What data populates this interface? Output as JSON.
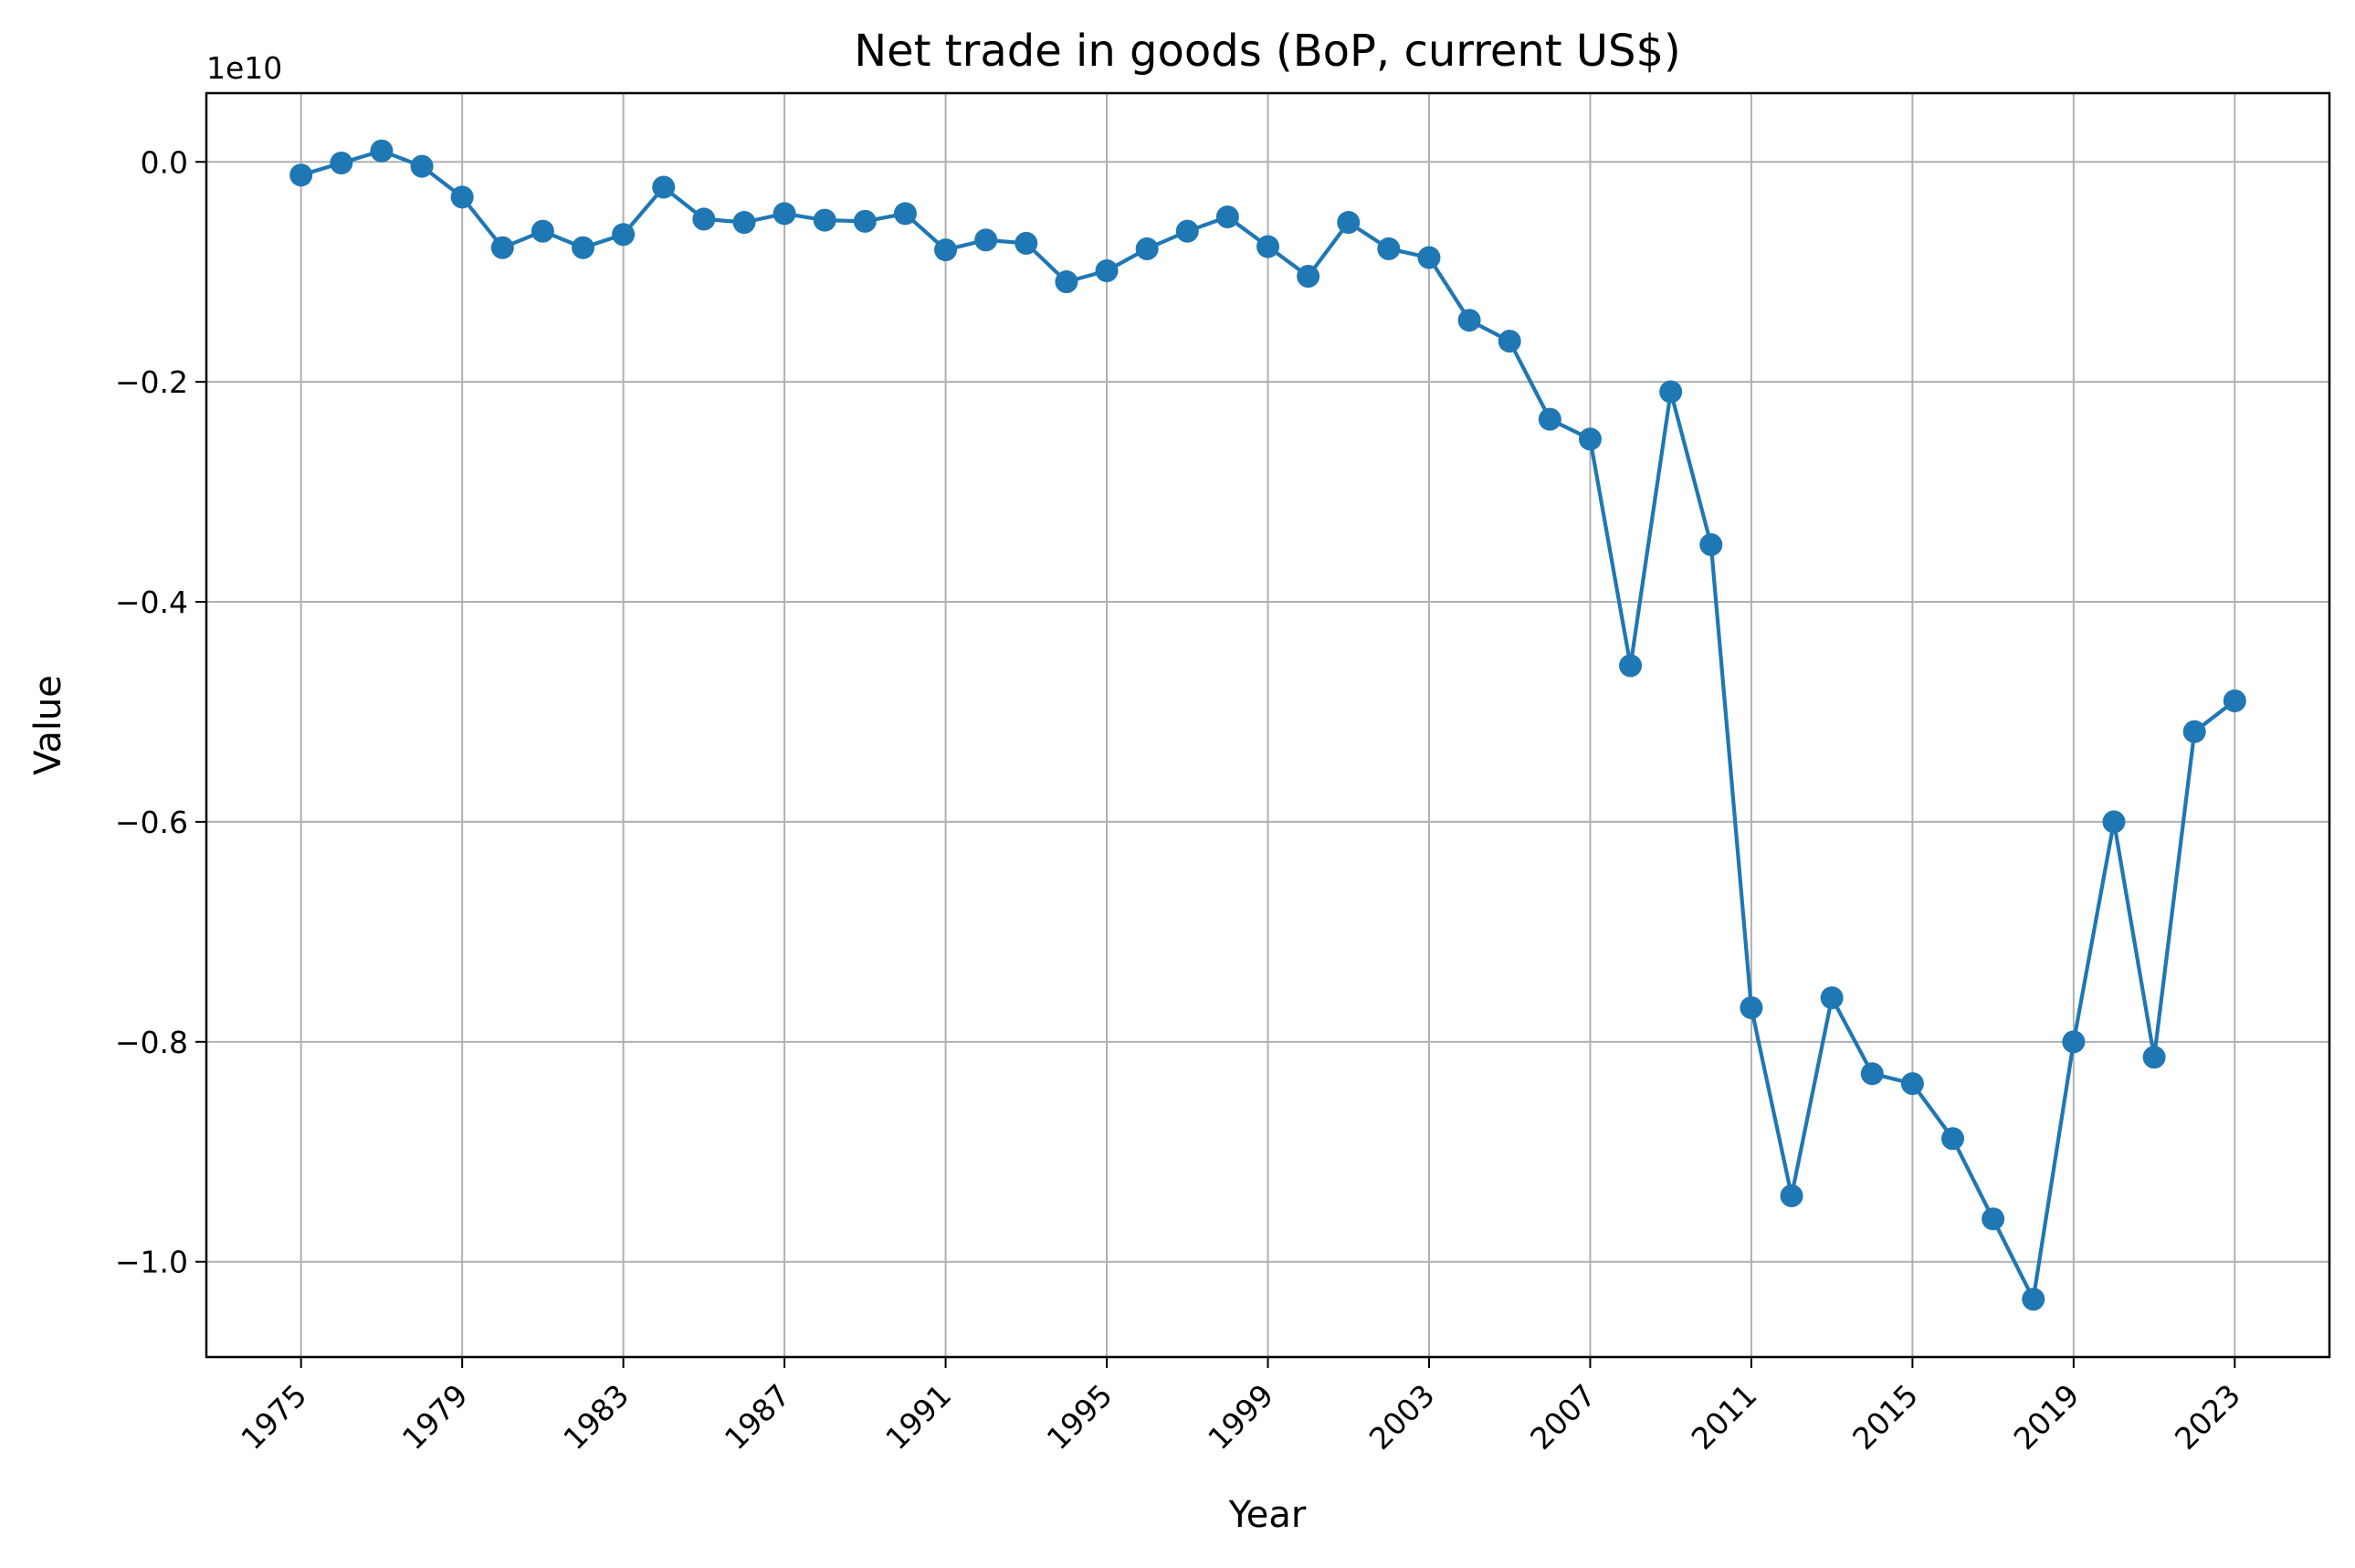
{
  "chart_data": {
    "type": "line",
    "title": "Net trade in goods (BoP, current US$)",
    "xlabel": "Year",
    "ylabel": "Value",
    "y_offset_label": "1e10",
    "x_ticks": [
      "1975",
      "1979",
      "1983",
      "1987",
      "1991",
      "1995",
      "1999",
      "2003",
      "2007",
      "2011",
      "2015",
      "2019",
      "2023"
    ],
    "y_ticks": [
      "0.0",
      "−0.2",
      "−0.4",
      "−0.6",
      "−0.8",
      "−1.0"
    ],
    "y_tick_values": [
      0.0,
      -0.2,
      -0.4,
      -0.6,
      -0.8,
      -1.0
    ],
    "xlim": [
      1972.65,
      2025.35
    ],
    "ylim": [
      -1.0866,
      0.0625
    ],
    "y_scale_note": "values in units of 1e10 US$",
    "grid": true,
    "color": "#1f77b4",
    "series": [
      {
        "x": [
          1975,
          1976,
          1977,
          1978,
          1979,
          1980,
          1981,
          1982,
          1983,
          1984,
          1985,
          1986,
          1987,
          1988,
          1989,
          1990,
          1991,
          1992,
          1993,
          1994,
          1995,
          1996,
          1997,
          1998,
          1999,
          2000,
          2001,
          2002,
          2003,
          2004,
          2005,
          2006,
          2007,
          2008,
          2009,
          2010,
          2011,
          2012,
          2013,
          2014,
          2015,
          2016,
          2017,
          2018,
          2019,
          2020,
          2021,
          2022,
          2023
        ],
        "values": [
          -0.012,
          -0.001,
          0.01,
          -0.004,
          -0.032,
          -0.078,
          -0.063,
          -0.078,
          -0.066,
          -0.023,
          -0.052,
          -0.055,
          -0.047,
          -0.053,
          -0.054,
          -0.047,
          -0.08,
          -0.071,
          -0.074,
          -0.109,
          -0.099,
          -0.079,
          -0.063,
          -0.05,
          -0.077,
          -0.104,
          -0.055,
          -0.079,
          -0.087,
          -0.144,
          -0.163,
          -0.234,
          -0.252,
          -0.458,
          -0.209,
          -0.348,
          -0.769,
          -0.94,
          -0.76,
          -0.829,
          -0.838,
          -0.888,
          -0.961,
          -1.034,
          -0.8,
          -0.6,
          -0.814,
          -0.518,
          -0.49
        ]
      }
    ]
  }
}
